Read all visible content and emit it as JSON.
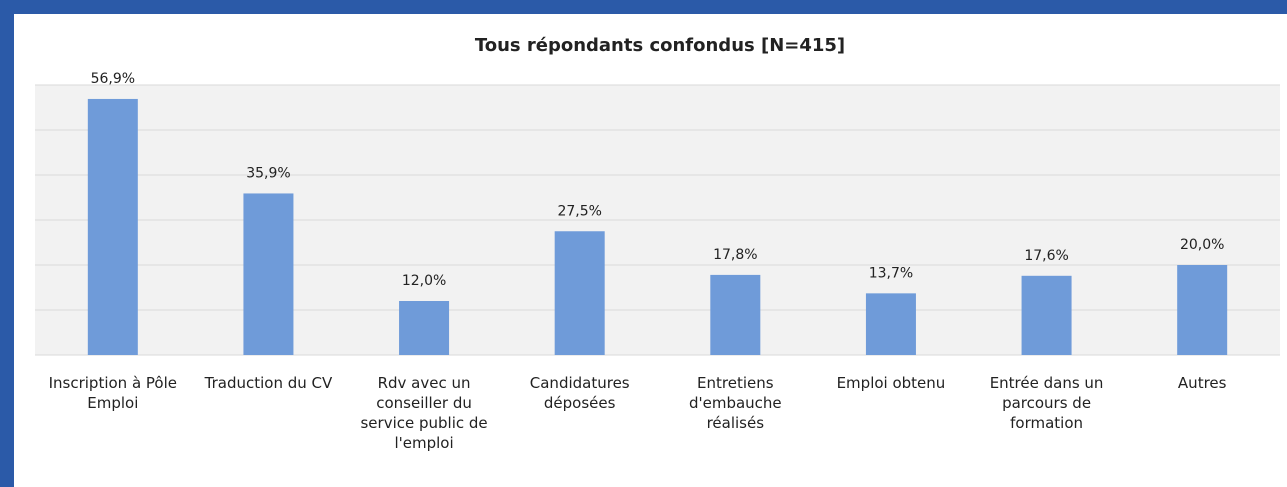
{
  "chart_data": {
    "type": "bar",
    "title": "Tous répondants confondus [N=415]",
    "categories": [
      "Inscription à Pôle Emploi",
      "Traduction du CV",
      "Rdv avec un conseiller du service public de l'emploi",
      "Candidatures déposées",
      "Entretiens d'embauche réalisés",
      "Emploi obtenu",
      "Entrée dans un parcours de formation",
      "Autres"
    ],
    "values": [
      56.9,
      35.9,
      12.0,
      27.5,
      17.8,
      13.7,
      17.6,
      20.0
    ],
    "value_labels": [
      "56,9%",
      "35,9%",
      "12,0%",
      "27,5%",
      "17,8%",
      "13,7%",
      "17,6%",
      "20,0%"
    ],
    "color": "#6f9bd9",
    "ylim": [
      0,
      60
    ],
    "yticks": [
      0,
      10,
      20,
      30,
      40,
      50,
      60
    ],
    "grid": true
  }
}
